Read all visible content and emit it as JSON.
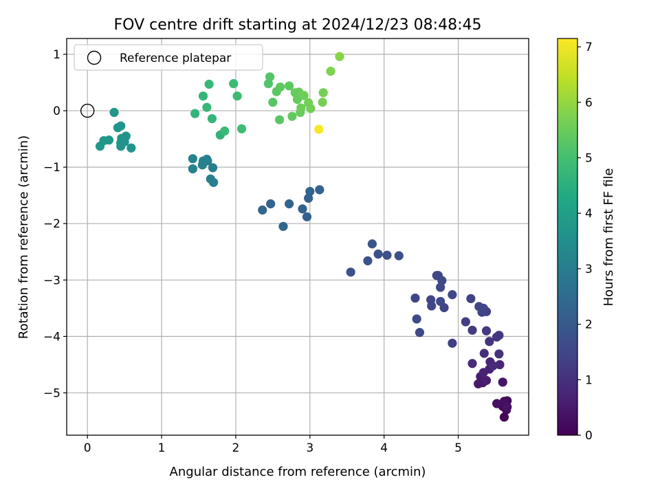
{
  "chart_data": {
    "type": "scatter",
    "title": "FOV centre drift starting at 2024/12/23 08:48:45",
    "xlabel": "Angular distance from reference (arcmin)",
    "ylabel": "Rotation from reference (arcmin)",
    "xlim": [
      -0.28,
      5.95
    ],
    "ylim": [
      -5.75,
      1.28
    ],
    "x_ticks": [
      0,
      1,
      2,
      3,
      4,
      5
    ],
    "y_ticks": [
      1,
      0,
      -1,
      -2,
      -3,
      -4,
      -5
    ],
    "grid": true,
    "legend": {
      "placement": "top-left",
      "entries": [
        "Reference platepar"
      ]
    },
    "reference_point": {
      "x": 0,
      "y": 0
    },
    "colorbar": {
      "label": "Hours from first FF file",
      "colormap": "viridis",
      "range": [
        0,
        7.15
      ],
      "ticks": [
        0,
        1,
        2,
        3,
        4,
        5,
        6,
        7
      ]
    },
    "points": [
      {
        "x": 5.62,
        "y": -5.43,
        "h": 0.05
      },
      {
        "x": 5.65,
        "y": -5.3,
        "h": 0.1
      },
      {
        "x": 5.6,
        "y": -5.24,
        "h": 0.15
      },
      {
        "x": 5.66,
        "y": -5.14,
        "h": 0.2
      },
      {
        "x": 5.62,
        "y": -5.15,
        "h": 0.25
      },
      {
        "x": 5.52,
        "y": -5.19,
        "h": 0.3
      },
      {
        "x": 5.66,
        "y": -5.25,
        "h": 0.35
      },
      {
        "x": 5.6,
        "y": -4.81,
        "h": 0.4
      },
      {
        "x": 5.33,
        "y": -4.82,
        "h": 0.45
      },
      {
        "x": 5.27,
        "y": -4.84,
        "h": 0.5
      },
      {
        "x": 5.3,
        "y": -4.71,
        "h": 0.55
      },
      {
        "x": 5.38,
        "y": -4.78,
        "h": 0.6
      },
      {
        "x": 5.42,
        "y": -4.58,
        "h": 0.65
      },
      {
        "x": 5.34,
        "y": -4.64,
        "h": 0.7
      },
      {
        "x": 5.43,
        "y": -4.45,
        "h": 0.75
      },
      {
        "x": 5.56,
        "y": -4.5,
        "h": 0.8
      },
      {
        "x": 5.47,
        "y": -4.52,
        "h": 0.85
      },
      {
        "x": 5.19,
        "y": -4.48,
        "h": 0.9
      },
      {
        "x": 5.35,
        "y": -4.3,
        "h": 0.95
      },
      {
        "x": 5.55,
        "y": -4.31,
        "h": 1.0
      },
      {
        "x": 5.42,
        "y": -4.09,
        "h": 1.05
      },
      {
        "x": 5.52,
        "y": -4.01,
        "h": 1.1
      },
      {
        "x": 5.55,
        "y": -3.98,
        "h": 1.15
      },
      {
        "x": 5.38,
        "y": -3.9,
        "h": 1.2
      },
      {
        "x": 5.19,
        "y": -3.89,
        "h": 1.25
      },
      {
        "x": 5.1,
        "y": -3.74,
        "h": 1.3
      },
      {
        "x": 5.38,
        "y": -3.56,
        "h": 1.35
      },
      {
        "x": 5.32,
        "y": -3.57,
        "h": 1.4
      },
      {
        "x": 5.28,
        "y": -3.47,
        "h": 1.45
      },
      {
        "x": 5.34,
        "y": -3.5,
        "h": 1.5
      },
      {
        "x": 5.17,
        "y": -3.33,
        "h": 1.4
      },
      {
        "x": 4.92,
        "y": -4.12,
        "h": 1.35
      },
      {
        "x": 4.92,
        "y": -3.26,
        "h": 1.5
      },
      {
        "x": 4.81,
        "y": -3.49,
        "h": 1.45
      },
      {
        "x": 4.76,
        "y": -3.38,
        "h": 1.55
      },
      {
        "x": 4.64,
        "y": -3.46,
        "h": 1.5
      },
      {
        "x": 4.63,
        "y": -3.35,
        "h": 1.45
      },
      {
        "x": 4.76,
        "y": -3.13,
        "h": 1.55
      },
      {
        "x": 4.78,
        "y": -3.01,
        "h": 1.6
      },
      {
        "x": 4.71,
        "y": -2.92,
        "h": 1.6
      },
      {
        "x": 4.73,
        "y": -2.92,
        "h": 1.55
      },
      {
        "x": 4.42,
        "y": -3.32,
        "h": 1.5
      },
      {
        "x": 4.44,
        "y": -3.69,
        "h": 1.6
      },
      {
        "x": 4.48,
        "y": -3.93,
        "h": 1.55
      },
      {
        "x": 3.55,
        "y": -2.86,
        "h": 1.85
      },
      {
        "x": 3.78,
        "y": -2.66,
        "h": 1.8
      },
      {
        "x": 3.84,
        "y": -2.36,
        "h": 1.9
      },
      {
        "x": 3.92,
        "y": -2.54,
        "h": 1.75
      },
      {
        "x": 4.04,
        "y": -2.56,
        "h": 1.75
      },
      {
        "x": 4.2,
        "y": -2.57,
        "h": 1.75
      },
      {
        "x": 3.13,
        "y": -1.4,
        "h": 2.2
      },
      {
        "x": 3.0,
        "y": -1.43,
        "h": 2.25
      },
      {
        "x": 2.98,
        "y": -1.55,
        "h": 2.2
      },
      {
        "x": 2.96,
        "y": -1.88,
        "h": 2.2
      },
      {
        "x": 2.9,
        "y": -1.74,
        "h": 2.25
      },
      {
        "x": 2.72,
        "y": -1.65,
        "h": 2.3
      },
      {
        "x": 2.64,
        "y": -2.05,
        "h": 2.35
      },
      {
        "x": 2.47,
        "y": -1.65,
        "h": 2.3
      },
      {
        "x": 2.36,
        "y": -1.76,
        "h": 2.35
      },
      {
        "x": 1.42,
        "y": -0.85,
        "h": 3.15
      },
      {
        "x": 1.42,
        "y": -1.03,
        "h": 3.1
      },
      {
        "x": 1.55,
        "y": -0.96,
        "h": 3.05
      },
      {
        "x": 1.56,
        "y": -0.89,
        "h": 3.15
      },
      {
        "x": 1.61,
        "y": -0.86,
        "h": 3.1
      },
      {
        "x": 1.62,
        "y": -0.89,
        "h": 3.1
      },
      {
        "x": 1.69,
        "y": -1.01,
        "h": 3.05
      },
      {
        "x": 1.66,
        "y": -1.21,
        "h": 3.05
      },
      {
        "x": 1.7,
        "y": -1.27,
        "h": 3.0
      },
      {
        "x": 0.17,
        "y": -0.63,
        "h": 3.8
      },
      {
        "x": 0.22,
        "y": -0.53,
        "h": 3.8
      },
      {
        "x": 0.29,
        "y": -0.52,
        "h": 3.75
      },
      {
        "x": 0.36,
        "y": -0.03,
        "h": 3.75
      },
      {
        "x": 0.41,
        "y": -0.3,
        "h": 3.7
      },
      {
        "x": 0.45,
        "y": -0.27,
        "h": 3.7
      },
      {
        "x": 0.46,
        "y": -0.49,
        "h": 3.65
      },
      {
        "x": 0.52,
        "y": -0.45,
        "h": 3.65
      },
      {
        "x": 0.45,
        "y": -0.57,
        "h": 3.7
      },
      {
        "x": 0.45,
        "y": -0.63,
        "h": 3.7
      },
      {
        "x": 0.5,
        "y": -0.55,
        "h": 3.6
      },
      {
        "x": 0.59,
        "y": -0.66,
        "h": 3.65
      },
      {
        "x": 1.79,
        "y": -0.43,
        "h": 4.6
      },
      {
        "x": 1.45,
        "y": -0.05,
        "h": 4.65
      },
      {
        "x": 1.56,
        "y": 0.26,
        "h": 4.7
      },
      {
        "x": 1.61,
        "y": 0.06,
        "h": 4.75
      },
      {
        "x": 1.64,
        "y": 0.47,
        "h": 4.75
      },
      {
        "x": 1.68,
        "y": -0.14,
        "h": 4.7
      },
      {
        "x": 1.85,
        "y": -0.36,
        "h": 4.8
      },
      {
        "x": 1.97,
        "y": 0.48,
        "h": 4.85
      },
      {
        "x": 2.02,
        "y": 0.26,
        "h": 4.85
      },
      {
        "x": 2.08,
        "y": -0.32,
        "h": 4.9
      },
      {
        "x": 2.44,
        "y": 0.48,
        "h": 5.15
      },
      {
        "x": 2.46,
        "y": 0.6,
        "h": 5.2
      },
      {
        "x": 2.5,
        "y": 0.15,
        "h": 5.25
      },
      {
        "x": 2.55,
        "y": 0.34,
        "h": 5.3
      },
      {
        "x": 2.6,
        "y": 0.42,
        "h": 5.35
      },
      {
        "x": 2.59,
        "y": -0.16,
        "h": 5.3
      },
      {
        "x": 2.72,
        "y": 0.44,
        "h": 5.35
      },
      {
        "x": 2.76,
        "y": -0.1,
        "h": 5.4
      },
      {
        "x": 2.8,
        "y": 0.32,
        "h": 5.45
      },
      {
        "x": 2.83,
        "y": 0.2,
        "h": 5.45
      },
      {
        "x": 2.85,
        "y": 0.33,
        "h": 5.5
      },
      {
        "x": 2.87,
        "y": -0.03,
        "h": 5.5
      },
      {
        "x": 2.88,
        "y": 0.05,
        "h": 5.55
      },
      {
        "x": 2.92,
        "y": 0.27,
        "h": 5.55
      },
      {
        "x": 2.98,
        "y": 0.14,
        "h": 5.6
      },
      {
        "x": 3.01,
        "y": 0.04,
        "h": 5.6
      },
      {
        "x": 3.17,
        "y": 0.15,
        "h": 5.65
      },
      {
        "x": 3.18,
        "y": 0.32,
        "h": 5.65
      },
      {
        "x": 3.28,
        "y": 0.7,
        "h": 5.75
      },
      {
        "x": 3.4,
        "y": 0.96,
        "h": 5.85
      },
      {
        "x": 3.12,
        "y": -0.33,
        "h": 7.1
      }
    ]
  }
}
